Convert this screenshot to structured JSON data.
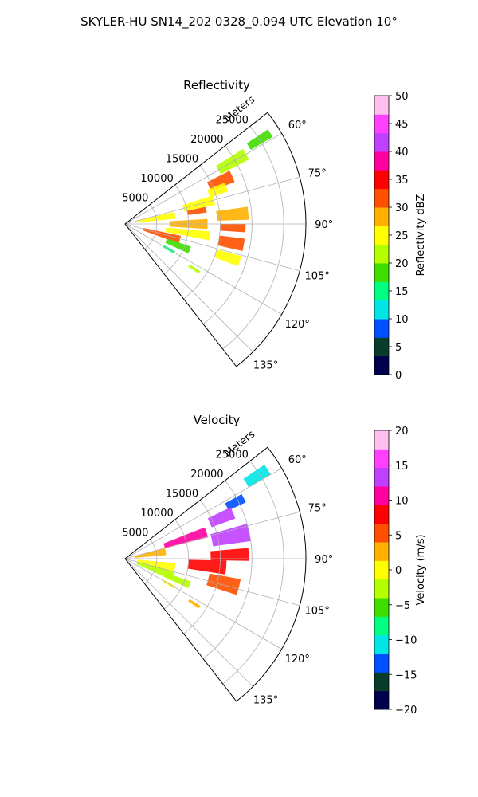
{
  "figure": {
    "suptitle": "SKYLER-HU  SN14_202  0328_0.094 UTC Elevation 10°"
  },
  "chart_data": [
    {
      "type": "heatmap",
      "projection": "polar-sector",
      "title": "Reflectivity",
      "range_label": "Meters",
      "range_ticks": [
        5000,
        10000,
        15000,
        20000,
        25000
      ],
      "range_tick_labels": [
        "5000",
        "10000",
        "15000",
        "20000",
        "25000"
      ],
      "range_max": 28500,
      "azimuth_range_deg": [
        52,
        142
      ],
      "azimuth_ticks": [
        60,
        75,
        90,
        105,
        120,
        135
      ],
      "azimuth_tick_labels": [
        "60°",
        "75°",
        "90°",
        "105°",
        "120°",
        "135°"
      ],
      "grid": true,
      "colorbar": {
        "label": "Reflectivity dBZ",
        "vmin": 0,
        "vmax": 50,
        "ticks": [
          0,
          5,
          10,
          15,
          20,
          25,
          30,
          35,
          40,
          45,
          50
        ],
        "tick_labels": [
          "0",
          "5",
          "10",
          "15",
          "20",
          "25",
          "30",
          "35",
          "40",
          "45",
          "50"
        ],
        "colors": [
          "#00004c",
          "#083c2c",
          "#0050ff",
          "#00e6e6",
          "#00ff80",
          "#40dd00",
          "#b4ff00",
          "#ffff00",
          "#ffb000",
          "#ff5000",
          "#ff0000",
          "#ff00a0",
          "#c040ff",
          "#ff40ff",
          "#ffc0f0"
        ]
      },
      "cells_note": "approximate echo regions",
      "regions": [
        {
          "az": 60,
          "r": 19500,
          "value": 22,
          "az_w": 5,
          "r_w": 5000
        },
        {
          "az": 58,
          "r": 25000,
          "value": 18,
          "az_w": 3,
          "r_w": 4000
        },
        {
          "az": 66,
          "r": 16500,
          "value": 30,
          "az_w": 6,
          "r_w": 4000
        },
        {
          "az": 70,
          "r": 15500,
          "value": 26,
          "az_w": 5,
          "r_w": 3000
        },
        {
          "az": 75,
          "r": 12000,
          "value": 24,
          "az_w": 6,
          "r_w": 5000
        },
        {
          "az": 80,
          "r": 11500,
          "value": 32,
          "az_w": 4,
          "r_w": 3000
        },
        {
          "az": 80,
          "r": 5000,
          "value": 24,
          "az_w": 8,
          "r_w": 6000
        },
        {
          "az": 85,
          "r": 17000,
          "value": 28,
          "az_w": 6,
          "r_w": 5000
        },
        {
          "az": 90,
          "r": 10000,
          "value": 27,
          "az_w": 7,
          "r_w": 6000
        },
        {
          "az": 92,
          "r": 17000,
          "value": 30,
          "az_w": 4,
          "r_w": 4000
        },
        {
          "az": 98,
          "r": 10000,
          "value": 26,
          "az_w": 6,
          "r_w": 7000
        },
        {
          "az": 100,
          "r": 17000,
          "value": 31,
          "az_w": 6,
          "r_w": 4000
        },
        {
          "az": 106,
          "r": 6000,
          "value": 32,
          "az_w": 8,
          "r_w": 6000
        },
        {
          "az": 108,
          "r": 17000,
          "value": 24,
          "az_w": 5,
          "r_w": 4000
        },
        {
          "az": 112,
          "r": 9000,
          "value": 18,
          "az_w": 6,
          "r_w": 4000
        },
        {
          "az": 120,
          "r": 8000,
          "value": 16,
          "az_w": 3,
          "r_w": 2000
        },
        {
          "az": 123,
          "r": 13000,
          "value": 20,
          "az_w": 2,
          "r_w": 2000
        }
      ]
    },
    {
      "type": "heatmap",
      "projection": "polar-sector",
      "title": "Velocity",
      "range_label": "Meters",
      "range_ticks": [
        5000,
        10000,
        15000,
        20000,
        25000
      ],
      "range_tick_labels": [
        "5000",
        "10000",
        "15000",
        "20000",
        "25000"
      ],
      "range_max": 28500,
      "azimuth_range_deg": [
        52,
        142
      ],
      "azimuth_ticks": [
        60,
        75,
        90,
        105,
        120,
        135
      ],
      "azimuth_tick_labels": [
        "60°",
        "75°",
        "90°",
        "105°",
        "120°",
        "135°"
      ],
      "grid": true,
      "colorbar": {
        "label": "Velocity (m/s)",
        "vmin": -20,
        "vmax": 20,
        "ticks": [
          -20,
          -15,
          -10,
          -5,
          0,
          5,
          10,
          15,
          20
        ],
        "tick_labels": [
          "−20",
          "−15",
          "−10",
          "−5",
          "0",
          "5",
          "10",
          "15",
          "20"
        ],
        "colors": [
          "#00004c",
          "#083c2c",
          "#0050ff",
          "#00e6e6",
          "#00ff80",
          "#40dd00",
          "#b4ff00",
          "#ffff00",
          "#ffb000",
          "#ff5000",
          "#ff0000",
          "#ff00a0",
          "#c040ff",
          "#ff40ff",
          "#ffc0f0"
        ]
      },
      "cells_note": "approximate echo regions",
      "regions": [
        {
          "az": 58,
          "r": 24500,
          "value": -12,
          "az_w": 4,
          "r_w": 4000
        },
        {
          "az": 63,
          "r": 19500,
          "value": -14,
          "az_w": 4,
          "r_w": 3000
        },
        {
          "az": 67,
          "r": 16500,
          "value": 14,
          "az_w": 6,
          "r_w": 4000
        },
        {
          "az": 72,
          "r": 10000,
          "value": 11,
          "az_w": 7,
          "r_w": 7000
        },
        {
          "az": 78,
          "r": 17000,
          "value": 13,
          "az_w": 8,
          "r_w": 6000
        },
        {
          "az": 80,
          "r": 4000,
          "value": 2,
          "az_w": 10,
          "r_w": 5000
        },
        {
          "az": 88,
          "r": 16500,
          "value": 9,
          "az_w": 6,
          "r_w": 6000
        },
        {
          "az": 95,
          "r": 13000,
          "value": 7,
          "az_w": 8,
          "r_w": 6000
        },
        {
          "az": 100,
          "r": 5000,
          "value": 0,
          "az_w": 10,
          "r_w": 6000
        },
        {
          "az": 104,
          "r": 16000,
          "value": 5,
          "az_w": 8,
          "r_w": 5000
        },
        {
          "az": 110,
          "r": 5000,
          "value": -4,
          "az_w": 10,
          "r_w": 6000
        },
        {
          "az": 112,
          "r": 9000,
          "value": -3,
          "az_w": 6,
          "r_w": 4000
        },
        {
          "az": 120,
          "r": 8000,
          "value": 1,
          "az_w": 3,
          "r_w": 2000
        },
        {
          "az": 123,
          "r": 13000,
          "value": 2,
          "az_w": 2,
          "r_w": 2000
        }
      ]
    }
  ]
}
